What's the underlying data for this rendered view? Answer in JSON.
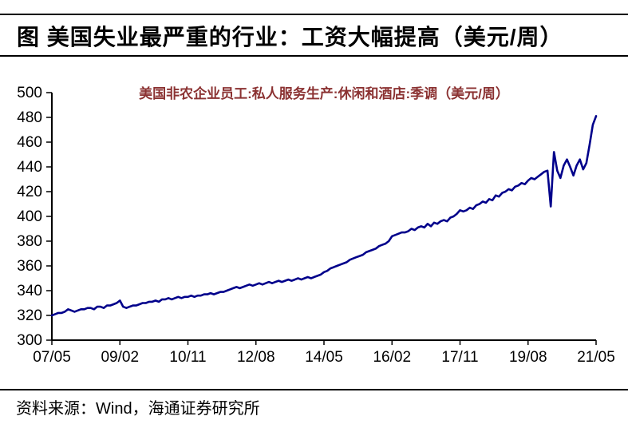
{
  "page": {
    "title": "图  美国失业最严重的行业：工资大幅提高（美元/周）",
    "source": "资料来源：Wind，海通证券研究所"
  },
  "colors": {
    "line": "#00008B",
    "legend_text": "#8B3232",
    "axis": "#000000",
    "title_text": "#000000"
  },
  "chart_data": {
    "type": "line",
    "title": "美国非农企业员工:私人服务生产:休闲和酒店:季调（美元/周）",
    "legend_position": "top-center",
    "grid": false,
    "x_frequency": "monthly",
    "x_range": [
      "2007-05",
      "2021-05"
    ],
    "x_tick_labels": [
      "07/05",
      "09/02",
      "10/11",
      "12/08",
      "14/05",
      "16/02",
      "17/11",
      "19/08",
      "21/05"
    ],
    "x_tick_indices": [
      0,
      21,
      42,
      63,
      84,
      105,
      126,
      147,
      168
    ],
    "ylim": [
      300,
      500
    ],
    "y_ticks": [
      300,
      320,
      340,
      360,
      380,
      400,
      420,
      440,
      460,
      480,
      500
    ],
    "series": [
      {
        "name": "美国非农企业员工:私人服务生产:休闲和酒店:季调（美元/周）",
        "values": [
          320,
          321,
          322,
          322,
          323,
          325,
          324,
          323,
          324,
          325,
          325,
          326,
          326,
          325,
          327,
          327,
          326,
          328,
          328,
          329,
          330,
          332,
          327,
          326,
          327,
          328,
          328,
          329,
          330,
          330,
          331,
          331,
          332,
          331,
          333,
          333,
          334,
          333,
          334,
          335,
          334,
          335,
          335,
          336,
          335,
          336,
          336,
          337,
          337,
          338,
          337,
          338,
          339,
          339,
          340,
          341,
          342,
          343,
          342,
          343,
          344,
          345,
          344,
          345,
          346,
          345,
          346,
          347,
          346,
          347,
          348,
          347,
          348,
          349,
          348,
          349,
          350,
          349,
          350,
          351,
          350,
          351,
          352,
          353,
          355,
          356,
          358,
          359,
          360,
          361,
          362,
          363,
          365,
          366,
          367,
          368,
          369,
          371,
          372,
          373,
          374,
          376,
          377,
          378,
          380,
          384,
          385,
          386,
          387,
          387,
          388,
          390,
          389,
          391,
          392,
          391,
          394,
          392,
          395,
          394,
          396,
          397,
          396,
          399,
          400,
          402,
          405,
          404,
          405,
          407,
          406,
          409,
          410,
          412,
          411,
          414,
          413,
          417,
          416,
          419,
          420,
          422,
          421,
          424,
          425,
          427,
          426,
          429,
          431,
          430,
          432,
          434,
          436,
          437,
          408,
          452,
          437,
          431,
          441,
          446,
          440,
          433,
          441,
          446,
          438,
          443,
          458,
          474,
          481
        ]
      }
    ]
  }
}
